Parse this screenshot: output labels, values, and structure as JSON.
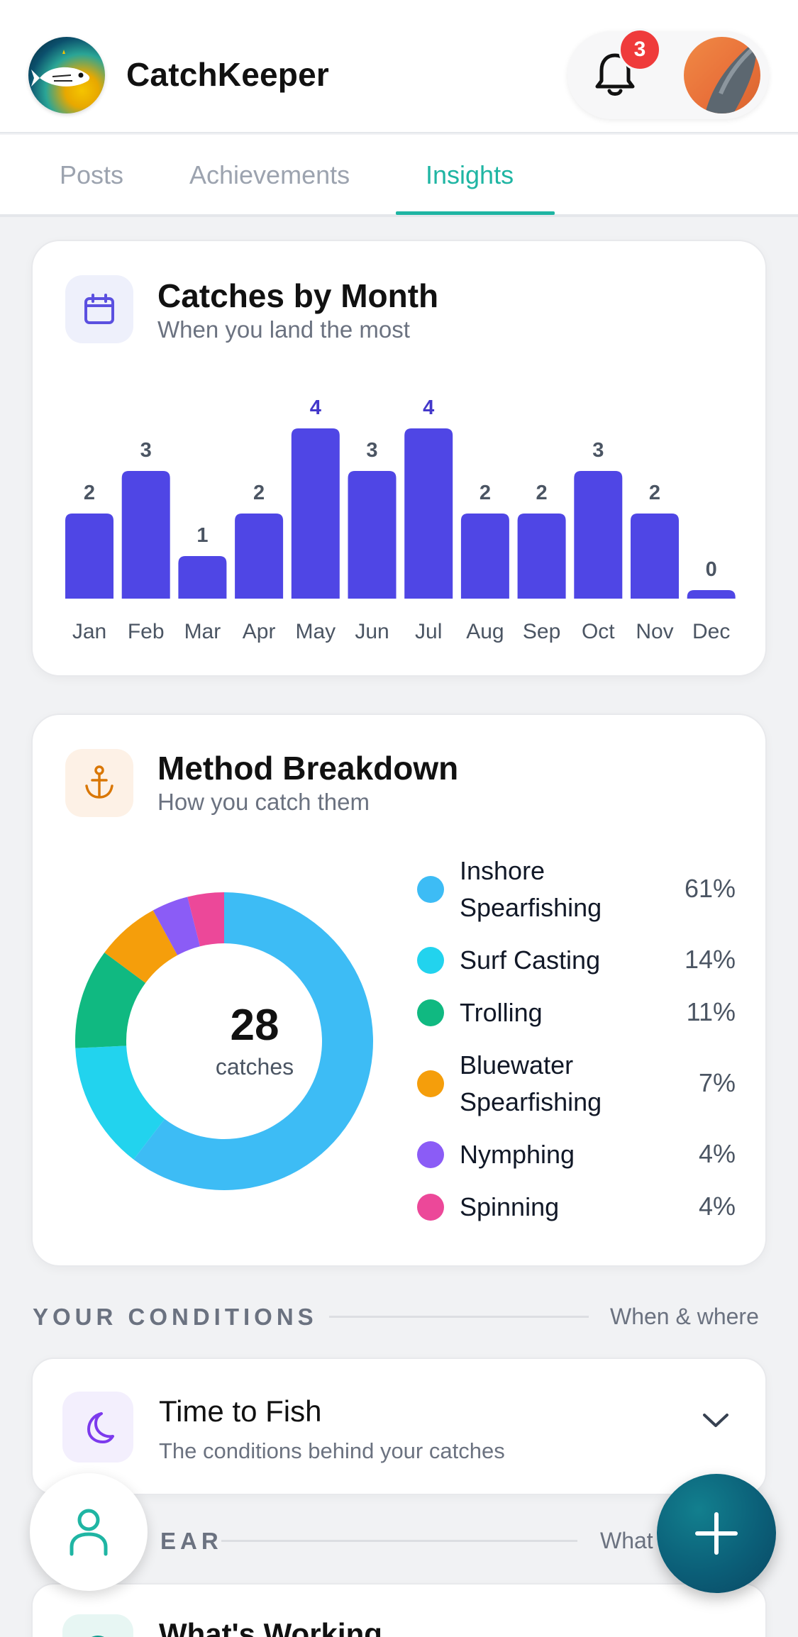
{
  "app": {
    "title": "CatchKeeper"
  },
  "header": {
    "notification_count": "3",
    "icons": [
      "fish-logo-icon",
      "bell-icon",
      "avatar"
    ]
  },
  "tabs": [
    {
      "label": "Posts",
      "active": false
    },
    {
      "label": "Achievements",
      "active": false
    },
    {
      "label": "Insights",
      "active": true
    }
  ],
  "colors": {
    "accent": "#1fb5a3",
    "bar": "#4f46e5",
    "bar_highlight_label": "#4338ca",
    "badge": "#ef3b3b"
  },
  "catches_by_month": {
    "title": "Catches by Month",
    "subtitle": "When you land the most",
    "icon": "calendar-icon"
  },
  "method_breakdown": {
    "title": "Method Breakdown",
    "subtitle": "How you catch them",
    "icon": "anchor-icon",
    "total": "28",
    "total_label": "catches",
    "legend": [
      {
        "label": "Inshore Spearfishing",
        "pct": "61%",
        "color": "#3dbcf5"
      },
      {
        "label": "Surf Casting",
        "pct": "14%",
        "color": "#22d3ee"
      },
      {
        "label": "Trolling",
        "pct": "11%",
        "color": "#10b981"
      },
      {
        "label": "Bluewater Spearfishing",
        "pct": "7%",
        "color": "#f59e0b"
      },
      {
        "label": "Nymphing",
        "pct": "4%",
        "color": "#8b5cf6"
      },
      {
        "label": "Spinning",
        "pct": "4%",
        "color": "#ec4899"
      }
    ]
  },
  "conditions_section": {
    "label": "YOUR CONDITIONS",
    "aside": "When & where"
  },
  "time_to_fish": {
    "title": "Time to Fish",
    "subtitle": "The conditions behind your catches",
    "icon": "moon-icon"
  },
  "gear_section": {
    "label": "EAR",
    "aside": "What"
  },
  "whats_working": {
    "title": "What's Working"
  },
  "chart_data": [
    {
      "type": "bar",
      "title": "Catches by Month",
      "subtitle": "When you land the most",
      "categories": [
        "Jan",
        "Feb",
        "Mar",
        "Apr",
        "May",
        "Jun",
        "Jul",
        "Aug",
        "Sep",
        "Oct",
        "Nov",
        "Dec"
      ],
      "values": [
        2,
        3,
        1,
        2,
        4,
        3,
        4,
        2,
        2,
        3,
        2,
        0
      ],
      "highlight_max": true,
      "ylim": [
        0,
        4
      ],
      "grid": false,
      "xlabel": "",
      "ylabel": ""
    },
    {
      "type": "pie",
      "donut": true,
      "title": "Method Breakdown",
      "subtitle": "How you catch them",
      "categories": [
        "Inshore Spearfishing",
        "Surf Casting",
        "Trolling",
        "Bluewater Spearfishing",
        "Nymphing",
        "Spinning"
      ],
      "values": [
        61,
        14,
        11,
        7,
        4,
        4
      ],
      "center_value": 28,
      "center_label": "catches",
      "legend": "right"
    }
  ]
}
